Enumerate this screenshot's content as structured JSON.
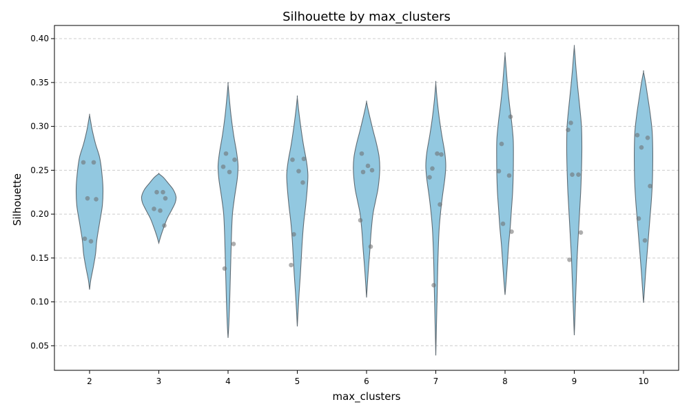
{
  "chart_data": {
    "type": "violin",
    "title": "Silhouette by max_clusters",
    "xlabel": "max_clusters",
    "ylabel": "Silhouette",
    "categories": [
      "2",
      "3",
      "4",
      "5",
      "6",
      "7",
      "8",
      "9",
      "10"
    ],
    "ylim": [
      0.022,
      0.415
    ],
    "yticks": [
      0.05,
      0.1,
      0.15,
      0.2,
      0.25,
      0.3,
      0.35,
      0.4
    ],
    "ytick_labels": [
      "0.05",
      "0.10",
      "0.15",
      "0.20",
      "0.25",
      "0.30",
      "0.35",
      "0.40"
    ],
    "grid": "y-dashed",
    "colors": {
      "violin_fill": "#92c8e0",
      "violin_edge": "#5f6b73",
      "points": "#6b6b6b"
    },
    "violins": [
      {
        "category": "2",
        "range": [
          0.114,
          0.313
        ],
        "profile": [
          [
            0.114,
            0
          ],
          [
            0.125,
            0.06
          ],
          [
            0.14,
            0.19
          ],
          [
            0.155,
            0.3
          ],
          [
            0.17,
            0.36
          ],
          [
            0.19,
            0.5
          ],
          [
            0.21,
            0.64
          ],
          [
            0.23,
            0.67
          ],
          [
            0.25,
            0.6
          ],
          [
            0.265,
            0.5
          ],
          [
            0.28,
            0.3
          ],
          [
            0.295,
            0.14
          ],
          [
            0.305,
            0.06
          ],
          [
            0.313,
            0
          ]
        ],
        "points": [
          0.259,
          0.259,
          0.218,
          0.217,
          0.172,
          0.169
        ]
      },
      {
        "category": "3",
        "range": [
          0.167,
          0.246
        ],
        "profile": [
          [
            0.167,
            0
          ],
          [
            0.175,
            0.1
          ],
          [
            0.185,
            0.25
          ],
          [
            0.195,
            0.42
          ],
          [
            0.205,
            0.65
          ],
          [
            0.213,
            0.82
          ],
          [
            0.22,
            0.86
          ],
          [
            0.228,
            0.72
          ],
          [
            0.235,
            0.48
          ],
          [
            0.242,
            0.22
          ],
          [
            0.246,
            0
          ]
        ],
        "points": [
          0.225,
          0.225,
          0.218,
          0.206,
          0.204,
          0.187
        ]
      },
      {
        "category": "4",
        "range": [
          0.059,
          0.348
        ],
        "profile": [
          [
            0.059,
            0
          ],
          [
            0.075,
            0.04
          ],
          [
            0.1,
            0.08
          ],
          [
            0.125,
            0.11
          ],
          [
            0.15,
            0.14
          ],
          [
            0.175,
            0.17
          ],
          [
            0.2,
            0.22
          ],
          [
            0.22,
            0.33
          ],
          [
            0.24,
            0.46
          ],
          [
            0.255,
            0.5
          ],
          [
            0.27,
            0.43
          ],
          [
            0.29,
            0.28
          ],
          [
            0.31,
            0.16
          ],
          [
            0.33,
            0.07
          ],
          [
            0.348,
            0
          ]
        ],
        "points": [
          0.269,
          0.262,
          0.254,
          0.248,
          0.166,
          0.138
        ]
      },
      {
        "category": "5",
        "range": [
          0.072,
          0.333
        ],
        "profile": [
          [
            0.072,
            0
          ],
          [
            0.09,
            0.04
          ],
          [
            0.11,
            0.09
          ],
          [
            0.13,
            0.15
          ],
          [
            0.15,
            0.2
          ],
          [
            0.17,
            0.25
          ],
          [
            0.19,
            0.32
          ],
          [
            0.21,
            0.42
          ],
          [
            0.23,
            0.5
          ],
          [
            0.245,
            0.53
          ],
          [
            0.26,
            0.46
          ],
          [
            0.28,
            0.3
          ],
          [
            0.3,
            0.17
          ],
          [
            0.318,
            0.07
          ],
          [
            0.333,
            0
          ]
        ],
        "points": [
          0.263,
          0.262,
          0.249,
          0.236,
          0.177,
          0.142
        ]
      },
      {
        "category": "6",
        "range": [
          0.105,
          0.328
        ],
        "profile": [
          [
            0.105,
            0
          ],
          [
            0.12,
            0.04
          ],
          [
            0.14,
            0.1
          ],
          [
            0.16,
            0.17
          ],
          [
            0.18,
            0.23
          ],
          [
            0.2,
            0.32
          ],
          [
            0.215,
            0.45
          ],
          [
            0.23,
            0.58
          ],
          [
            0.25,
            0.66
          ],
          [
            0.265,
            0.63
          ],
          [
            0.28,
            0.5
          ],
          [
            0.295,
            0.33
          ],
          [
            0.31,
            0.17
          ],
          [
            0.32,
            0.07
          ],
          [
            0.328,
            0
          ]
        ],
        "points": [
          0.269,
          0.255,
          0.25,
          0.248,
          0.193,
          0.163
        ]
      },
      {
        "category": "7",
        "range": [
          0.039,
          0.349
        ],
        "profile": [
          [
            0.039,
            0
          ],
          [
            0.06,
            0.02
          ],
          [
            0.08,
            0.04
          ],
          [
            0.1,
            0.06
          ],
          [
            0.12,
            0.08
          ],
          [
            0.15,
            0.11
          ],
          [
            0.18,
            0.16
          ],
          [
            0.2,
            0.23
          ],
          [
            0.22,
            0.33
          ],
          [
            0.24,
            0.45
          ],
          [
            0.255,
            0.5
          ],
          [
            0.27,
            0.45
          ],
          [
            0.29,
            0.3
          ],
          [
            0.31,
            0.17
          ],
          [
            0.33,
            0.07
          ],
          [
            0.349,
            0
          ]
        ],
        "points": [
          0.269,
          0.268,
          0.252,
          0.242,
          0.211,
          0.119
        ]
      },
      {
        "category": "8",
        "range": [
          0.108,
          0.382
        ],
        "profile": [
          [
            0.108,
            0
          ],
          [
            0.125,
            0.06
          ],
          [
            0.145,
            0.12
          ],
          [
            0.165,
            0.18
          ],
          [
            0.185,
            0.26
          ],
          [
            0.205,
            0.32
          ],
          [
            0.225,
            0.38
          ],
          [
            0.245,
            0.41
          ],
          [
            0.265,
            0.42
          ],
          [
            0.285,
            0.41
          ],
          [
            0.305,
            0.33
          ],
          [
            0.325,
            0.22
          ],
          [
            0.345,
            0.13
          ],
          [
            0.365,
            0.06
          ],
          [
            0.382,
            0
          ]
        ],
        "points": [
          0.311,
          0.28,
          0.249,
          0.244,
          0.189,
          0.18
        ]
      },
      {
        "category": "9",
        "range": [
          0.062,
          0.391
        ],
        "profile": [
          [
            0.062,
            0
          ],
          [
            0.08,
            0.03
          ],
          [
            0.1,
            0.06
          ],
          [
            0.125,
            0.1
          ],
          [
            0.15,
            0.14
          ],
          [
            0.175,
            0.2
          ],
          [
            0.2,
            0.26
          ],
          [
            0.225,
            0.32
          ],
          [
            0.25,
            0.36
          ],
          [
            0.275,
            0.38
          ],
          [
            0.3,
            0.36
          ],
          [
            0.325,
            0.26
          ],
          [
            0.345,
            0.17
          ],
          [
            0.365,
            0.09
          ],
          [
            0.38,
            0.04
          ],
          [
            0.391,
            0
          ]
        ],
        "points": [
          0.304,
          0.296,
          0.245,
          0.245,
          0.179,
          0.148
        ]
      },
      {
        "category": "10",
        "range": [
          0.099,
          0.362
        ],
        "profile": [
          [
            0.099,
            0
          ],
          [
            0.115,
            0.05
          ],
          [
            0.135,
            0.11
          ],
          [
            0.155,
            0.18
          ],
          [
            0.175,
            0.25
          ],
          [
            0.195,
            0.32
          ],
          [
            0.215,
            0.39
          ],
          [
            0.235,
            0.44
          ],
          [
            0.255,
            0.46
          ],
          [
            0.275,
            0.46
          ],
          [
            0.295,
            0.43
          ],
          [
            0.315,
            0.33
          ],
          [
            0.335,
            0.2
          ],
          [
            0.35,
            0.1
          ],
          [
            0.362,
            0
          ]
        ],
        "points": [
          0.29,
          0.287,
          0.276,
          0.232,
          0.195,
          0.17
        ]
      }
    ]
  }
}
